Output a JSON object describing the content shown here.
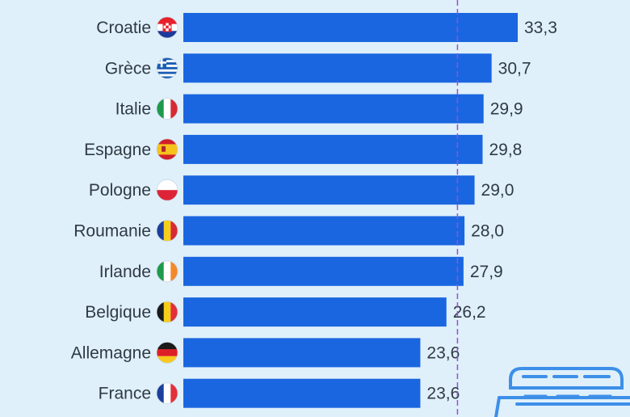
{
  "chart_data": {
    "type": "bar",
    "orientation": "horizontal",
    "categories": [
      "Croatie",
      "Grèce",
      "Italie",
      "Espagne",
      "Pologne",
      "Roumanie",
      "Irlande",
      "Belgique",
      "Allemagne",
      "France"
    ],
    "values": [
      33.3,
      30.7,
      29.9,
      29.8,
      29.0,
      28.0,
      27.9,
      26.2,
      23.6,
      23.6
    ],
    "value_labels": [
      "33,3",
      "30,7",
      "29,9",
      "29,8",
      "29,0",
      "28,0",
      "27,9",
      "26,2",
      "23,6",
      "23,6"
    ],
    "flags": [
      "croatia-flag-icon",
      "greece-flag-icon",
      "italy-flag-icon",
      "spain-flag-icon",
      "poland-flag-icon",
      "romania-flag-icon",
      "ireland-flag-icon",
      "belgium-flag-icon",
      "germany-flag-icon",
      "france-flag-icon"
    ],
    "reference_line": 27.3,
    "xlim": [
      0,
      36
    ],
    "grid": false,
    "colors": {
      "bar": "#1a66e0",
      "reference_line": "#9a4fd6",
      "background": "#dff0fa",
      "text": "#2f3a45"
    }
  }
}
